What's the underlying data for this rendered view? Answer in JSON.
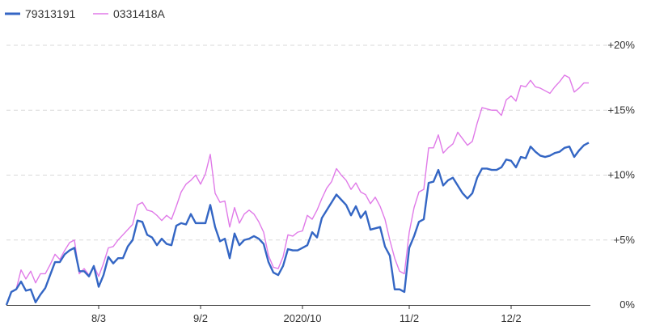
{
  "chart_data": {
    "type": "line",
    "title": "",
    "xlabel": "",
    "ylabel": "",
    "ylim": [
      0,
      20
    ],
    "y_ticks": [
      {
        "value": 0,
        "label": "0%"
      },
      {
        "value": 5,
        "label": "+5%"
      },
      {
        "value": 10,
        "label": "+10%"
      },
      {
        "value": 15,
        "label": "+15%"
      },
      {
        "value": 20,
        "label": "+20%"
      }
    ],
    "x_ticks": [
      {
        "index": 19,
        "label": "8/3"
      },
      {
        "index": 40,
        "label": "9/2"
      },
      {
        "index": 61,
        "label": "2020/10"
      },
      {
        "index": 83,
        "label": "11/2"
      },
      {
        "index": 104,
        "label": "12/2"
      }
    ],
    "grid": "horizontal-dashed",
    "legend_position": "top-left",
    "series": [
      {
        "name": "79313191",
        "color": "#3466c4",
        "values": [
          0.0,
          1.0,
          1.2,
          1.8,
          1.1,
          1.2,
          0.2,
          0.8,
          1.3,
          2.3,
          3.3,
          3.3,
          3.9,
          4.2,
          4.4,
          2.6,
          2.6,
          2.2,
          3.0,
          1.4,
          2.3,
          3.7,
          3.2,
          3.6,
          3.6,
          4.5,
          5.0,
          6.5,
          6.4,
          5.4,
          5.2,
          4.6,
          5.1,
          4.7,
          4.6,
          6.1,
          6.3,
          6.2,
          7.0,
          6.3,
          6.3,
          6.3,
          7.7,
          6.0,
          4.9,
          5.1,
          3.6,
          5.5,
          4.6,
          5.0,
          5.1,
          5.3,
          5.1,
          4.7,
          3.3,
          2.5,
          2.3,
          3.0,
          4.3,
          4.2,
          4.2,
          4.4,
          4.6,
          5.6,
          5.2,
          6.7,
          7.3,
          7.9,
          8.5,
          8.1,
          7.7,
          6.9,
          7.6,
          6.7,
          7.2,
          5.8,
          5.9,
          6.0,
          4.5,
          3.8,
          1.2,
          1.2,
          1.0,
          4.4,
          5.3,
          6.4,
          6.6,
          9.4,
          9.5,
          10.4,
          9.2,
          9.6,
          9.8,
          9.2,
          8.6,
          8.2,
          8.6,
          9.8,
          10.5,
          10.5,
          10.4,
          10.4,
          10.6,
          11.2,
          11.1,
          10.6,
          11.4,
          11.3,
          12.2,
          11.8,
          11.5,
          11.4,
          11.5,
          11.7,
          11.8,
          12.1,
          12.2,
          11.4,
          11.9,
          12.3,
          12.5
        ]
      },
      {
        "name": "0331418A",
        "color": "#e07ae8",
        "values": [
          0.0,
          1.0,
          1.2,
          2.7,
          2.0,
          2.6,
          1.7,
          2.4,
          2.4,
          3.1,
          3.9,
          3.5,
          4.2,
          4.8,
          5.0,
          2.4,
          2.8,
          2.3,
          3.0,
          2.2,
          3.2,
          4.4,
          4.5,
          5.0,
          5.4,
          5.8,
          6.2,
          7.7,
          7.9,
          7.3,
          7.2,
          6.9,
          6.5,
          6.9,
          6.6,
          7.6,
          8.7,
          9.3,
          9.6,
          10.0,
          9.3,
          10.1,
          11.6,
          8.6,
          7.9,
          8.0,
          6.0,
          7.5,
          6.3,
          7.0,
          7.3,
          7.0,
          6.4,
          5.6,
          3.8,
          2.9,
          2.8,
          3.7,
          5.4,
          5.3,
          5.6,
          5.7,
          6.9,
          6.6,
          7.3,
          8.2,
          9.0,
          9.5,
          10.5,
          10.0,
          9.6,
          8.9,
          9.4,
          8.7,
          8.5,
          7.8,
          8.3,
          7.6,
          6.6,
          5.0,
          3.6,
          2.6,
          2.4,
          5.6,
          7.5,
          8.7,
          8.9,
          12.1,
          12.1,
          13.1,
          11.7,
          12.1,
          12.4,
          13.3,
          12.8,
          12.3,
          12.6,
          14.0,
          15.2,
          15.1,
          15.0,
          15.0,
          14.6,
          15.8,
          16.1,
          15.7,
          16.9,
          16.8,
          17.3,
          16.8,
          16.7,
          16.5,
          16.3,
          16.8,
          17.2,
          17.7,
          17.5,
          16.4,
          16.7,
          17.1,
          17.1
        ]
      }
    ]
  }
}
